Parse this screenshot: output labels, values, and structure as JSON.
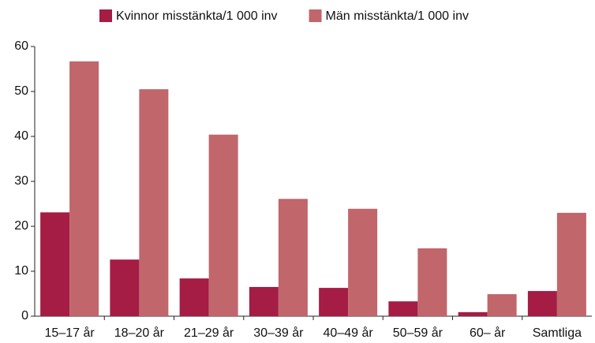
{
  "chart_data": {
    "type": "bar",
    "categories": [
      "15–17 år",
      "18–20 år",
      "21–29 år",
      "30–39 år",
      "40–49 år",
      "50–59 år",
      "60– år",
      "Samtliga"
    ],
    "series": [
      {
        "name": "Kvinnor misstänkta/1 000 inv",
        "color": "#a51c45",
        "values": [
          23.1,
          12.6,
          8.4,
          6.5,
          6.3,
          3.3,
          0.9,
          5.6
        ]
      },
      {
        "name": "Män misstänkta/1 000 inv",
        "color": "#c1666b",
        "values": [
          56.7,
          50.5,
          40.4,
          26.1,
          23.9,
          15.1,
          4.9,
          23.0
        ]
      }
    ],
    "ylim": [
      0,
      60
    ],
    "yticks": [
      0,
      10,
      20,
      30,
      40,
      50,
      60
    ],
    "grid": false
  }
}
